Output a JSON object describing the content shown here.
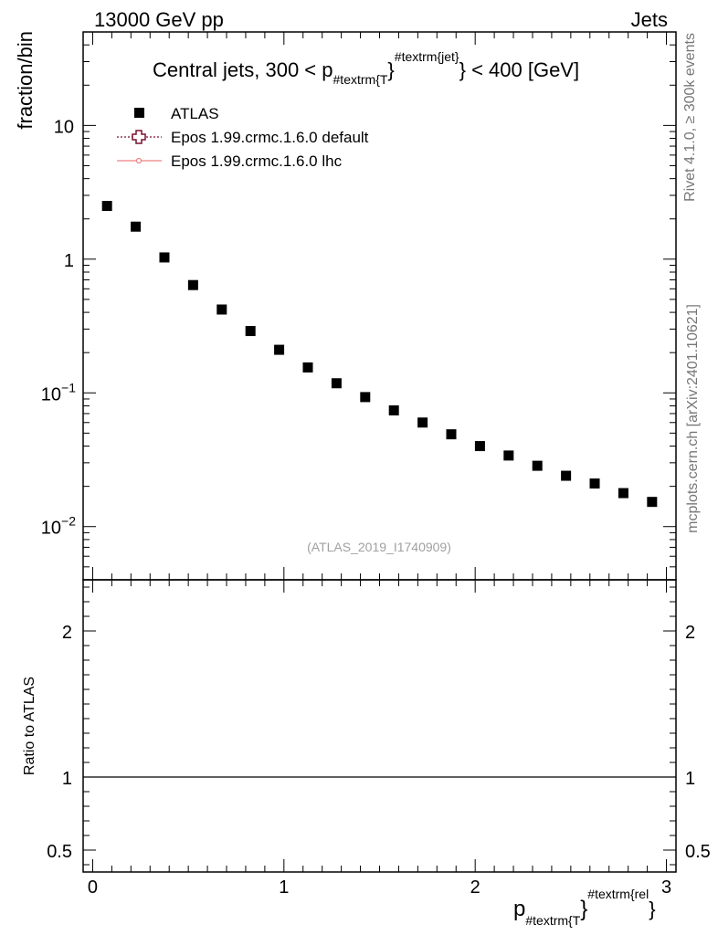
{
  "header": {
    "left": "13000 GeV pp",
    "right": "Jets"
  },
  "side_text": {
    "rivet": "Rivet 4.1.0, ≥ 300k events",
    "source": "mcplots.cern.ch [arXiv:2401.10621]"
  },
  "colors": {
    "data": "#000000",
    "epos_default": "#7a1030",
    "epos_lhc": "#f08080",
    "watermark": "#a0a0a0"
  },
  "chart_data": [
    {
      "type": "scatter",
      "title": {
        "pre": "Central jets, 300 < p",
        "sub": "#textrm{T",
        "brace": "}",
        "sup": "#textrm{jet}",
        "post": "} < 400 [GeV]"
      },
      "ylabel": "fraction/bin",
      "yscale": "log",
      "ylim": [
        0.004,
        50
      ],
      "xlim": [
        -0.05,
        3.05
      ],
      "x_ticks": [
        0,
        1,
        2,
        3
      ],
      "y_ticks": [
        {
          "value": 10,
          "base": "10",
          "exp": ""
        },
        {
          "value": 1,
          "base": "1",
          "exp": ""
        },
        {
          "value": 0.1,
          "base": "10",
          "exp": "−1"
        },
        {
          "value": 0.01,
          "base": "10",
          "exp": "−2"
        }
      ],
      "watermark": "(ATLAS_2019_I1740909)",
      "legend": {
        "placement": "top-left",
        "entries": [
          {
            "label": "ATLAS",
            "marker": "square"
          },
          {
            "label": "Epos 1.99.crmc.1.6.0 default",
            "marker": "open-cross"
          },
          {
            "label": "Epos 1.99.crmc.1.6.0 lhc",
            "marker": "line"
          }
        ]
      },
      "series": [
        {
          "name": "ATLAS",
          "x": [
            0.075,
            0.225,
            0.375,
            0.525,
            0.675,
            0.825,
            0.975,
            1.125,
            1.275,
            1.425,
            1.575,
            1.725,
            1.875,
            2.025,
            2.175,
            2.325,
            2.475,
            2.625,
            2.775,
            2.925
          ],
          "y": [
            2.5,
            1.75,
            1.03,
            0.64,
            0.42,
            0.29,
            0.21,
            0.155,
            0.118,
            0.093,
            0.074,
            0.06,
            0.049,
            0.04,
            0.034,
            0.0285,
            0.024,
            0.021,
            0.0178,
            0.0153
          ]
        }
      ]
    },
    {
      "type": "line",
      "ylabel": "Ratio to ATLAS",
      "ylim": [
        0.35,
        2.35
      ],
      "xlim": [
        -0.05,
        3.05
      ],
      "x_ticks": [
        0,
        1,
        2,
        3
      ],
      "y_ticks": [
        0.5,
        1,
        2
      ],
      "y_tick_labels": [
        "0.5",
        "1",
        "2"
      ],
      "reference": 1,
      "xlabel": {
        "main": "p",
        "sub": "#textrm{T",
        "brace": "}",
        "sup": "#textrm{rel",
        "post": "}"
      }
    }
  ]
}
